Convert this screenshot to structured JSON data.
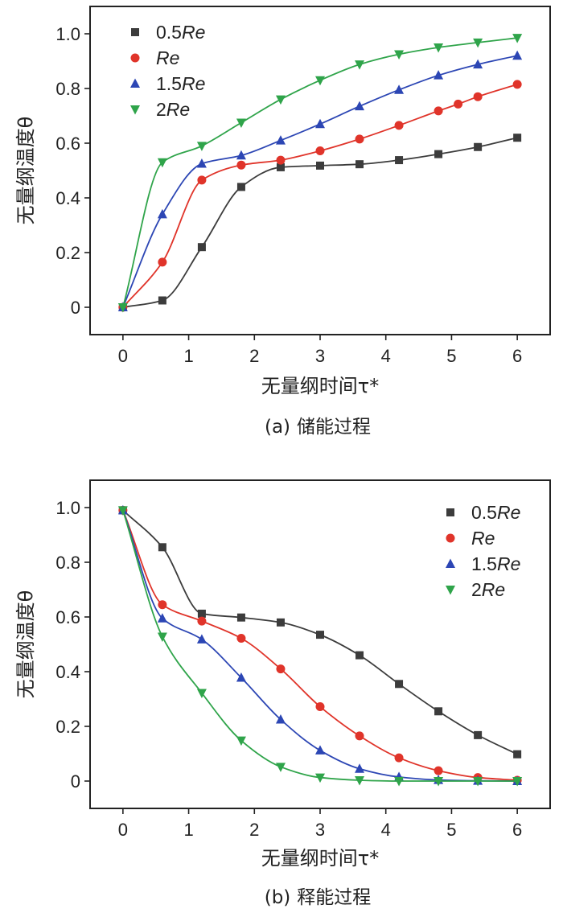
{
  "chart_data": [
    {
      "type": "line",
      "panel": "a",
      "caption_id": "(a)",
      "caption_text": "储能过程",
      "xlabel": "无量纲时间τ*",
      "ylabel": "无量纲温度θ",
      "xlim": [
        -0.5,
        6.5
      ],
      "ylim": [
        -0.1,
        1.1
      ],
      "x_ticks": [
        "0",
        "1",
        "2",
        "3",
        "4",
        "5",
        "6"
      ],
      "y_ticks": [
        "0",
        "0.2",
        "0.4",
        "0.6",
        "0.8",
        "1.0"
      ],
      "legend_position": "top-left",
      "series": [
        {
          "name": "0.5Re",
          "prefix": "0.5",
          "italic": "Re",
          "color": "#3c3c3c",
          "marker": "square",
          "x": [
            0,
            0.6,
            1.2,
            1.8,
            2.4,
            3.0,
            3.6,
            4.2,
            4.8,
            5.4,
            6.0
          ],
          "y": [
            0.0,
            0.025,
            0.22,
            0.44,
            0.512,
            0.518,
            0.523,
            0.538,
            0.56,
            0.586,
            0.62
          ]
        },
        {
          "name": "Re",
          "prefix": "",
          "italic": "Re",
          "color": "#e0342a",
          "marker": "circle",
          "x": [
            0,
            0.6,
            1.2,
            1.8,
            2.4,
            3.0,
            3.6,
            4.2,
            4.8,
            5.1,
            5.4,
            6.0
          ],
          "y": [
            0.0,
            0.165,
            0.465,
            0.52,
            0.538,
            0.572,
            0.615,
            0.665,
            0.718,
            0.743,
            0.77,
            0.815
          ]
        },
        {
          "name": "1.5Re",
          "prefix": "1.5",
          "italic": "Re",
          "color": "#2c46b4",
          "marker": "triangle-up",
          "x": [
            0,
            0.6,
            1.2,
            1.8,
            2.4,
            3.0,
            3.6,
            4.2,
            4.8,
            5.4,
            6.0
          ],
          "y": [
            0.0,
            0.34,
            0.525,
            0.555,
            0.61,
            0.67,
            0.735,
            0.795,
            0.848,
            0.888,
            0.92
          ]
        },
        {
          "name": "2Re",
          "prefix": "2",
          "italic": "Re",
          "color": "#2fa44a",
          "marker": "triangle-down",
          "x": [
            0,
            0.6,
            1.2,
            1.8,
            2.4,
            3.0,
            3.6,
            4.2,
            4.8,
            5.4,
            6.0
          ],
          "y": [
            0.0,
            0.53,
            0.59,
            0.675,
            0.76,
            0.83,
            0.888,
            0.925,
            0.95,
            0.968,
            0.985
          ]
        }
      ]
    },
    {
      "type": "line",
      "panel": "b",
      "caption_id": "(b)",
      "caption_text": "释能过程",
      "xlabel": "无量纲时间τ*",
      "ylabel": "无量纲温度θ",
      "xlim": [
        -0.5,
        6.5
      ],
      "ylim": [
        -0.1,
        1.1
      ],
      "x_ticks": [
        "0",
        "1",
        "2",
        "3",
        "4",
        "5",
        "6"
      ],
      "y_ticks": [
        "0",
        "0.2",
        "0.4",
        "0.6",
        "0.8",
        "1.0"
      ],
      "legend_position": "top-right",
      "series": [
        {
          "name": "0.5Re",
          "prefix": "0.5",
          "italic": "Re",
          "color": "#3c3c3c",
          "marker": "square",
          "x": [
            0,
            0.6,
            1.2,
            1.8,
            2.4,
            3.0,
            3.6,
            4.2,
            4.8,
            5.4,
            6.0
          ],
          "y": [
            0.99,
            0.855,
            0.612,
            0.598,
            0.58,
            0.535,
            0.46,
            0.355,
            0.255,
            0.168,
            0.098
          ]
        },
        {
          "name": "Re",
          "prefix": "",
          "italic": "Re",
          "color": "#e0342a",
          "marker": "circle",
          "x": [
            0,
            0.6,
            1.2,
            1.8,
            2.4,
            3.0,
            3.6,
            4.2,
            4.8,
            5.4,
            6.0
          ],
          "y": [
            0.99,
            0.645,
            0.585,
            0.522,
            0.41,
            0.272,
            0.165,
            0.085,
            0.038,
            0.013,
            0.003
          ]
        },
        {
          "name": "1.5Re",
          "prefix": "1.5",
          "italic": "Re",
          "color": "#2c46b4",
          "marker": "triangle-up",
          "x": [
            0,
            0.6,
            1.2,
            1.8,
            2.4,
            3.0,
            3.6,
            4.2,
            4.8,
            5.4,
            6.0
          ],
          "y": [
            0.99,
            0.595,
            0.518,
            0.378,
            0.225,
            0.112,
            0.045,
            0.015,
            0.004,
            0.001,
            0.0
          ]
        },
        {
          "name": "2Re",
          "prefix": "2",
          "italic": "Re",
          "color": "#2fa44a",
          "marker": "triangle-down",
          "x": [
            0,
            0.6,
            1.2,
            1.8,
            2.4,
            3.0,
            3.6,
            4.2,
            4.8,
            5.4,
            6.0
          ],
          "y": [
            0.99,
            0.528,
            0.322,
            0.148,
            0.052,
            0.013,
            0.003,
            0.0,
            0.0,
            0.0,
            0.0
          ]
        }
      ]
    }
  ]
}
